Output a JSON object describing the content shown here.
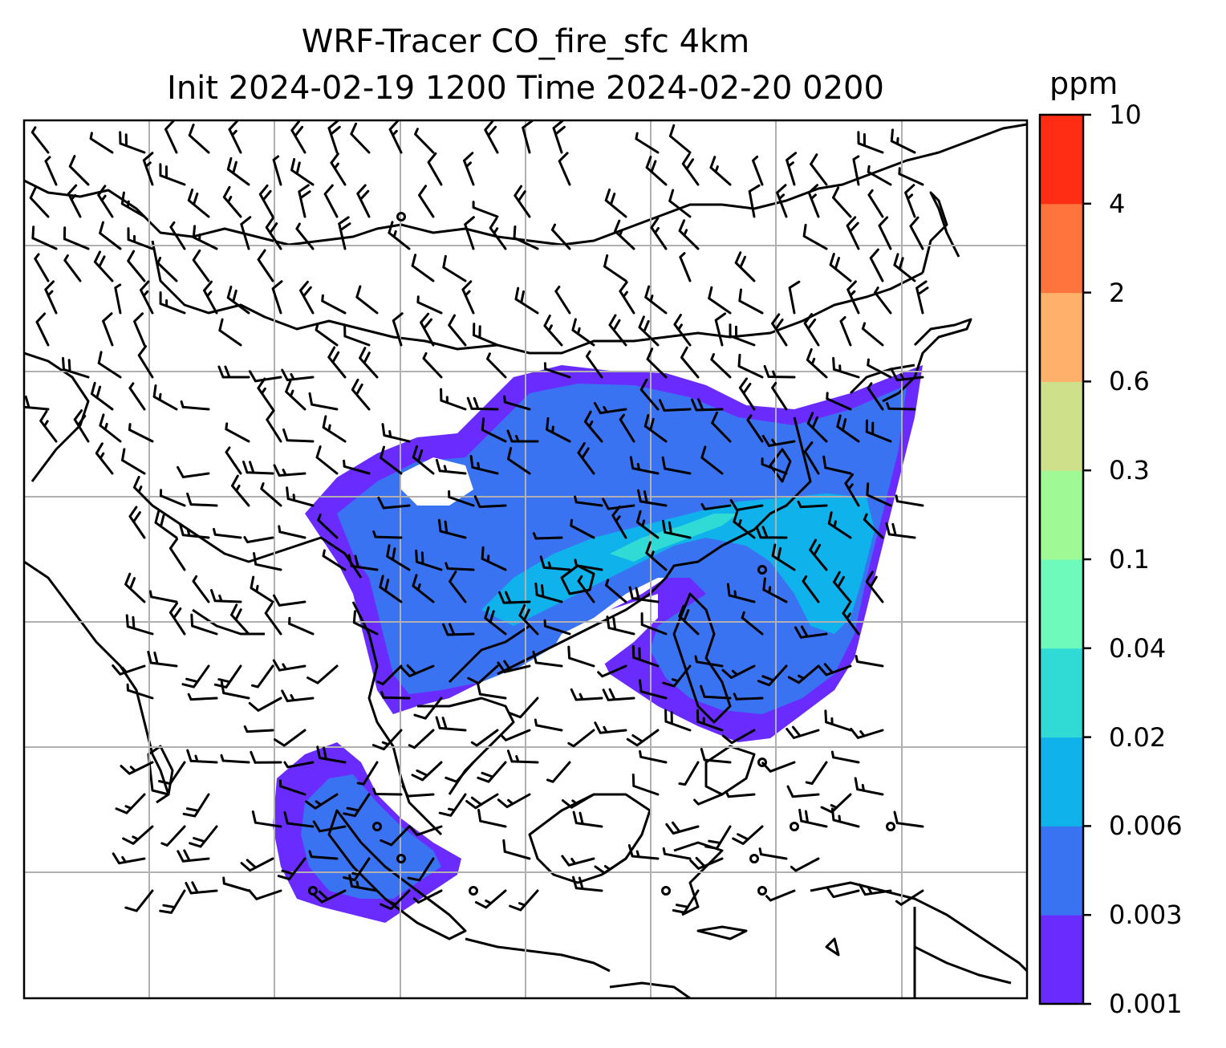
{
  "title": {
    "line1": "WRF-Tracer CO_fire_sfc 4km",
    "line2": "Init 2024-02-19 1200 Time 2024-02-20 0200"
  },
  "colorbar": {
    "unit": "ppm",
    "levels": [
      "0.001",
      "0.003",
      "0.006",
      "0.02",
      "0.04",
      "0.1",
      "0.3",
      "0.6",
      "2",
      "4",
      "10"
    ],
    "colors": [
      "#6a2bff",
      "#3a73f2",
      "#0fb2ea",
      "#30dbd6",
      "#6dfabb",
      "#9ff994",
      "#cfe08a",
      "#ffb06a",
      "#ff733d",
      "#ff2d14"
    ]
  },
  "map": {
    "plume_colors": {
      "low": "#6a2bff",
      "mid": "#3a73f2",
      "high": "#0fb2ea",
      "peak": "#30dbd6"
    },
    "coastline_color": "#000000",
    "grid_color": "#b0b0b0",
    "wind_barbs": true,
    "gridlines": true
  }
}
